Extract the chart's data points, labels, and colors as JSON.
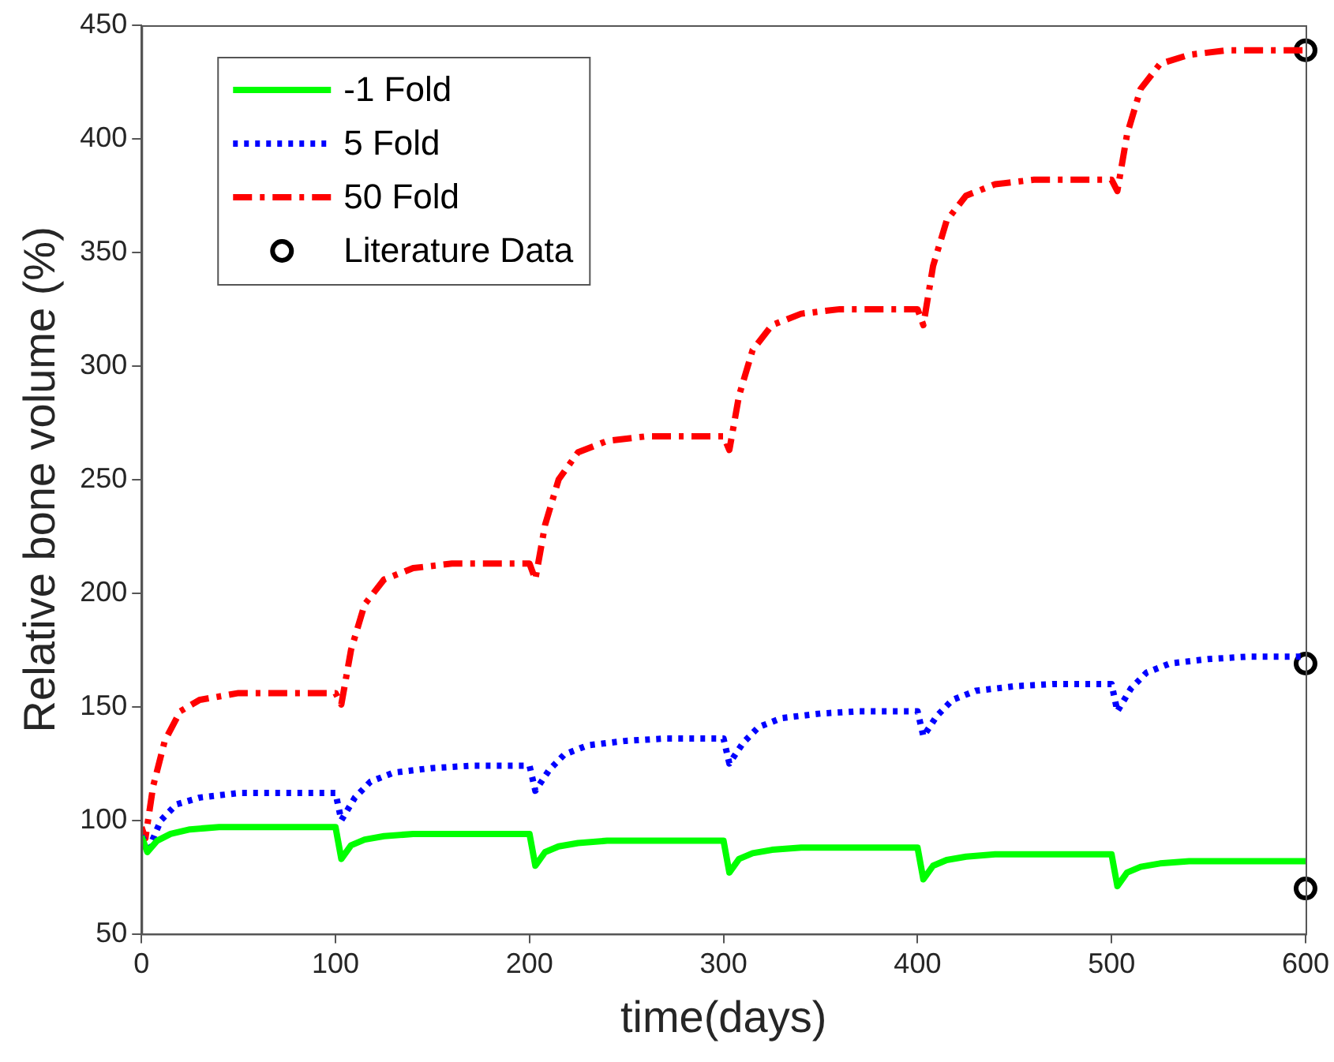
{
  "chart_data": {
    "type": "line",
    "xlabel": "time(days)",
    "ylabel": "Relative bone volume (%)",
    "xlim": [
      0,
      600
    ],
    "xticks": [
      0,
      100,
      200,
      300,
      400,
      500,
      600
    ],
    "ylim": [
      50,
      450
    ],
    "yticks": [
      50,
      100,
      150,
      200,
      250,
      300,
      350,
      400,
      450
    ],
    "grid": false,
    "legend": "top left",
    "series": [
      {
        "name": "-1 Fold",
        "color": "#00ff00",
        "line_style": "solid",
        "marker": "none",
        "x": [
          0,
          3,
          8,
          15,
          25,
          40,
          60,
          100,
          103,
          108,
          115,
          125,
          140,
          160,
          200,
          203,
          208,
          215,
          225,
          240,
          260,
          300,
          303,
          308,
          315,
          325,
          340,
          360,
          400,
          403,
          408,
          415,
          425,
          440,
          460,
          500,
          503,
          508,
          515,
          525,
          540,
          560,
          600
        ],
        "values": [
          93,
          86,
          91,
          94,
          96,
          97,
          97,
          97,
          83,
          89,
          91.5,
          93,
          94,
          94,
          94,
          80,
          86,
          88.5,
          90,
          91,
          91,
          91,
          77,
          83,
          85.5,
          87,
          88,
          88,
          88,
          74,
          80,
          82.5,
          84,
          85,
          85,
          85,
          71,
          77,
          79.5,
          81,
          82,
          82,
          82
        ]
      },
      {
        "name": "5 Fold",
        "color": "#0000ff",
        "line_style": "dotted",
        "marker": "none",
        "x": [
          0,
          4,
          10,
          18,
          30,
          50,
          100,
          103,
          110,
          118,
          130,
          150,
          170,
          200,
          203,
          210,
          218,
          230,
          250,
          270,
          300,
          303,
          310,
          318,
          330,
          350,
          370,
          400,
          403,
          410,
          418,
          430,
          450,
          470,
          500,
          503,
          510,
          518,
          530,
          550,
          570,
          600
        ],
        "values": [
          93,
          88,
          100,
          107,
          110,
          112,
          112,
          100,
          110,
          117,
          121,
          123,
          124,
          124,
          113,
          122,
          129,
          133,
          135,
          136,
          136,
          125,
          134,
          141,
          145,
          147,
          148,
          148,
          137,
          146,
          153,
          157,
          159,
          160,
          160,
          148,
          158,
          165,
          169,
          171,
          172,
          172
        ]
      },
      {
        "name": "50 Fold",
        "color": "#ff0000",
        "line_style": "dashed",
        "marker": "none",
        "x": [
          0,
          2,
          6,
          12,
          20,
          30,
          50,
          100,
          103,
          108,
          115,
          125,
          140,
          160,
          200,
          203,
          208,
          215,
          225,
          240,
          260,
          300,
          303,
          308,
          315,
          325,
          340,
          360,
          400,
          403,
          408,
          415,
          425,
          440,
          460,
          500,
          503,
          508,
          515,
          525,
          540,
          560,
          600
        ],
        "values": [
          97,
          92,
          115,
          135,
          148,
          153,
          156,
          156,
          151,
          175,
          195,
          206,
          211,
          213,
          213,
          206,
          230,
          250,
          262,
          267,
          269,
          269,
          263,
          287,
          307,
          318,
          323,
          325,
          325,
          318,
          344,
          364,
          375,
          380,
          382,
          382,
          377,
          402,
          422,
          433,
          437,
          439,
          439
        ]
      },
      {
        "name": "Literature Data",
        "type": "scatter",
        "color": "#000000",
        "marker": "circle",
        "x": [
          600,
          600,
          600
        ],
        "values": [
          439,
          169,
          70
        ]
      }
    ]
  }
}
